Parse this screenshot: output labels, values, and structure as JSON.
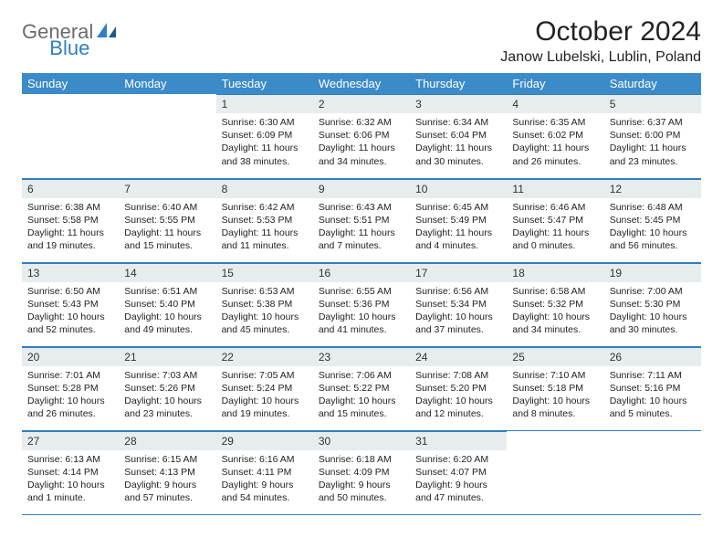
{
  "logo": {
    "text_gray": "General",
    "text_blue": "Blue"
  },
  "title": "October 2024",
  "location": "Janow Lubelski, Lublin, Poland",
  "colors": {
    "header_bg": "#3b8bc9",
    "header_text": "#ffffff",
    "daynum_bg": "#e7ecef",
    "border": "#2f7fc1",
    "logo_gray": "#6b6b6b",
    "logo_blue": "#2f7fc1"
  },
  "weekdays": [
    "Sunday",
    "Monday",
    "Tuesday",
    "Wednesday",
    "Thursday",
    "Friday",
    "Saturday"
  ],
  "weeks": [
    [
      null,
      null,
      {
        "n": "1",
        "sr": "6:30 AM",
        "ss": "6:09 PM",
        "dl": "11 hours and 38 minutes."
      },
      {
        "n": "2",
        "sr": "6:32 AM",
        "ss": "6:06 PM",
        "dl": "11 hours and 34 minutes."
      },
      {
        "n": "3",
        "sr": "6:34 AM",
        "ss": "6:04 PM",
        "dl": "11 hours and 30 minutes."
      },
      {
        "n": "4",
        "sr": "6:35 AM",
        "ss": "6:02 PM",
        "dl": "11 hours and 26 minutes."
      },
      {
        "n": "5",
        "sr": "6:37 AM",
        "ss": "6:00 PM",
        "dl": "11 hours and 23 minutes."
      }
    ],
    [
      {
        "n": "6",
        "sr": "6:38 AM",
        "ss": "5:58 PM",
        "dl": "11 hours and 19 minutes."
      },
      {
        "n": "7",
        "sr": "6:40 AM",
        "ss": "5:55 PM",
        "dl": "11 hours and 15 minutes."
      },
      {
        "n": "8",
        "sr": "6:42 AM",
        "ss": "5:53 PM",
        "dl": "11 hours and 11 minutes."
      },
      {
        "n": "9",
        "sr": "6:43 AM",
        "ss": "5:51 PM",
        "dl": "11 hours and 7 minutes."
      },
      {
        "n": "10",
        "sr": "6:45 AM",
        "ss": "5:49 PM",
        "dl": "11 hours and 4 minutes."
      },
      {
        "n": "11",
        "sr": "6:46 AM",
        "ss": "5:47 PM",
        "dl": "11 hours and 0 minutes."
      },
      {
        "n": "12",
        "sr": "6:48 AM",
        "ss": "5:45 PM",
        "dl": "10 hours and 56 minutes."
      }
    ],
    [
      {
        "n": "13",
        "sr": "6:50 AM",
        "ss": "5:43 PM",
        "dl": "10 hours and 52 minutes."
      },
      {
        "n": "14",
        "sr": "6:51 AM",
        "ss": "5:40 PM",
        "dl": "10 hours and 49 minutes."
      },
      {
        "n": "15",
        "sr": "6:53 AM",
        "ss": "5:38 PM",
        "dl": "10 hours and 45 minutes."
      },
      {
        "n": "16",
        "sr": "6:55 AM",
        "ss": "5:36 PM",
        "dl": "10 hours and 41 minutes."
      },
      {
        "n": "17",
        "sr": "6:56 AM",
        "ss": "5:34 PM",
        "dl": "10 hours and 37 minutes."
      },
      {
        "n": "18",
        "sr": "6:58 AM",
        "ss": "5:32 PM",
        "dl": "10 hours and 34 minutes."
      },
      {
        "n": "19",
        "sr": "7:00 AM",
        "ss": "5:30 PM",
        "dl": "10 hours and 30 minutes."
      }
    ],
    [
      {
        "n": "20",
        "sr": "7:01 AM",
        "ss": "5:28 PM",
        "dl": "10 hours and 26 minutes."
      },
      {
        "n": "21",
        "sr": "7:03 AM",
        "ss": "5:26 PM",
        "dl": "10 hours and 23 minutes."
      },
      {
        "n": "22",
        "sr": "7:05 AM",
        "ss": "5:24 PM",
        "dl": "10 hours and 19 minutes."
      },
      {
        "n": "23",
        "sr": "7:06 AM",
        "ss": "5:22 PM",
        "dl": "10 hours and 15 minutes."
      },
      {
        "n": "24",
        "sr": "7:08 AM",
        "ss": "5:20 PM",
        "dl": "10 hours and 12 minutes."
      },
      {
        "n": "25",
        "sr": "7:10 AM",
        "ss": "5:18 PM",
        "dl": "10 hours and 8 minutes."
      },
      {
        "n": "26",
        "sr": "7:11 AM",
        "ss": "5:16 PM",
        "dl": "10 hours and 5 minutes."
      }
    ],
    [
      {
        "n": "27",
        "sr": "6:13 AM",
        "ss": "4:14 PM",
        "dl": "10 hours and 1 minute."
      },
      {
        "n": "28",
        "sr": "6:15 AM",
        "ss": "4:13 PM",
        "dl": "9 hours and 57 minutes."
      },
      {
        "n": "29",
        "sr": "6:16 AM",
        "ss": "4:11 PM",
        "dl": "9 hours and 54 minutes."
      },
      {
        "n": "30",
        "sr": "6:18 AM",
        "ss": "4:09 PM",
        "dl": "9 hours and 50 minutes."
      },
      {
        "n": "31",
        "sr": "6:20 AM",
        "ss": "4:07 PM",
        "dl": "9 hours and 47 minutes."
      },
      null,
      null
    ]
  ],
  "labels": {
    "sunrise": "Sunrise:",
    "sunset": "Sunset:",
    "daylight": "Daylight:"
  }
}
